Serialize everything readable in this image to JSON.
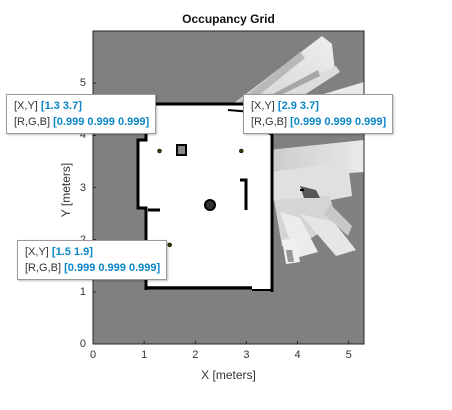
{
  "chart_data": {
    "type": "heatmap",
    "title": "Occupancy Grid",
    "xlabel": "X [meters]",
    "ylabel": "Y [meters]",
    "xlim": [
      0,
      5.3
    ],
    "ylim": [
      0,
      6
    ],
    "x_ticks": [
      "0",
      "1",
      "2",
      "3",
      "4",
      "5"
    ],
    "y_ticks": [
      "0",
      "1",
      "2",
      "3",
      "4",
      "5"
    ],
    "colormap": "gray",
    "colors": {
      "unknown": "#808080",
      "free": "#ffffff",
      "occupied": "#000000",
      "tip_value": "#0a86c8"
    },
    "datatips": [
      {
        "xy_label": "[X,Y]",
        "xy_value": "[1.3 3.7]",
        "rgb_label": "[R,G,B]",
        "rgb_value": "[0.999 0.999 0.999]",
        "x": 1.3,
        "y": 3.7
      },
      {
        "xy_label": "[X,Y]",
        "xy_value": "[2.9 3.7]",
        "rgb_label": "[R,G,B]",
        "rgb_value": "[0.999 0.999 0.999]",
        "x": 2.9,
        "y": 3.7
      },
      {
        "xy_label": "[X,Y]",
        "xy_value": "[1.5 1.9]",
        "rgb_label": "[R,G,B]",
        "rgb_value": "[0.999 0.999 0.999]",
        "x": 1.5,
        "y": 1.9
      }
    ]
  }
}
